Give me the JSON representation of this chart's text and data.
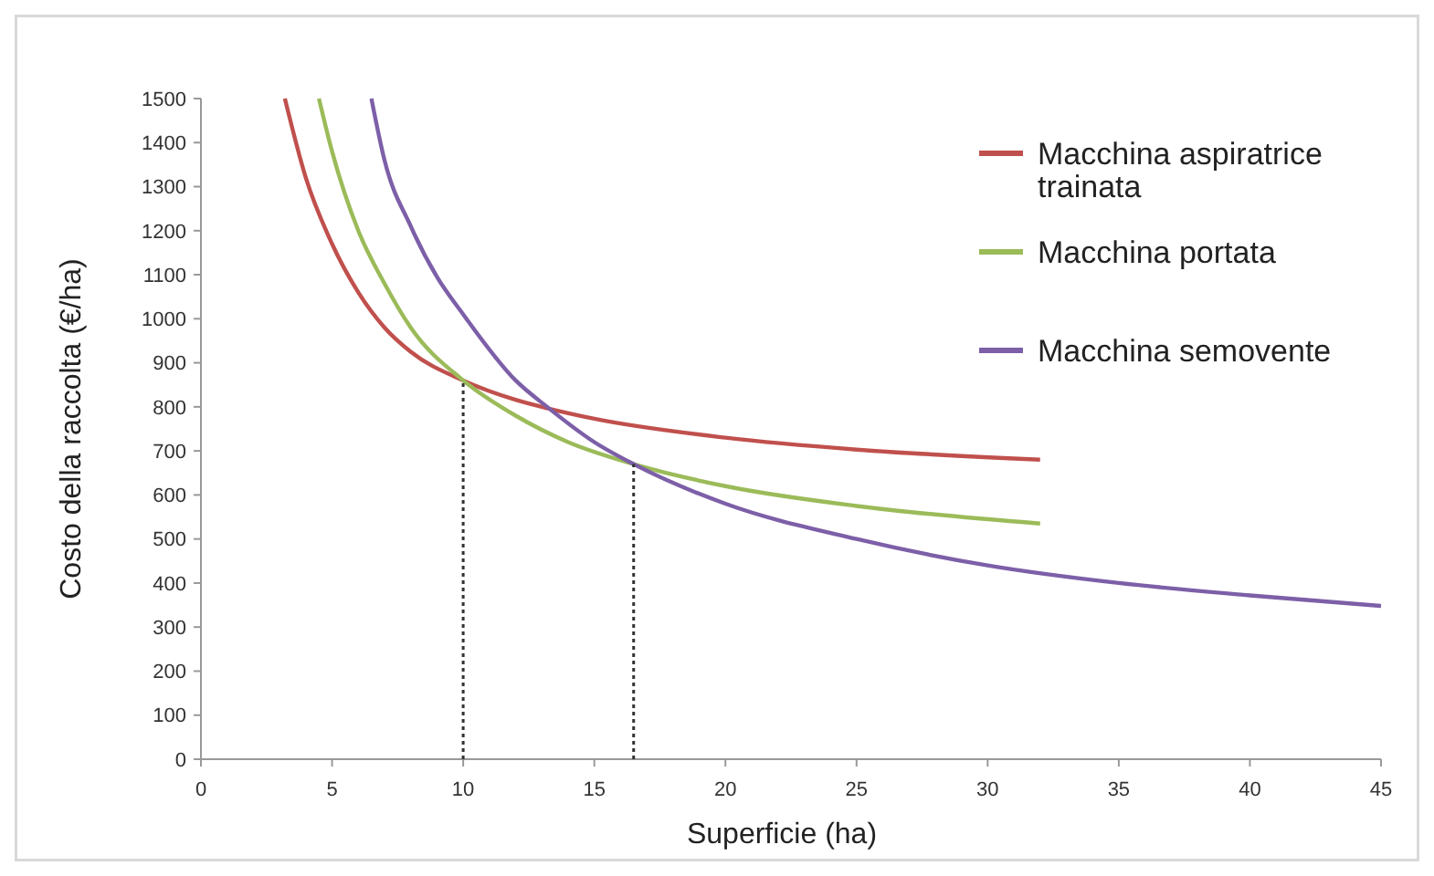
{
  "chart_data": {
    "type": "line",
    "xlabel": "Superficie (ha)",
    "ylabel": "Costo della raccolta (€/ha)",
    "xlim": [
      0,
      45
    ],
    "xticks": [
      0,
      5,
      10,
      15,
      20,
      25,
      30,
      35,
      40,
      45
    ],
    "ylim": [
      0,
      1500
    ],
    "yticks": [
      0,
      100,
      200,
      300,
      400,
      500,
      600,
      700,
      800,
      900,
      1000,
      1100,
      1200,
      1300,
      1400,
      1500
    ],
    "grid": false,
    "legend": "top right",
    "marker": "none",
    "line_style": "solid",
    "series": [
      {
        "name": "Macchina aspiratrice trainata",
        "color": "#c0504d",
        "x": [
          3.2,
          4,
          5,
          6,
          7,
          8,
          10,
          12,
          13.2,
          15,
          20,
          25,
          32
        ],
        "values": [
          1500,
          1320,
          1170,
          1060,
          980,
          925,
          860,
          816,
          797,
          773,
          730,
          703,
          680
        ]
      },
      {
        "name": "Macchina portata",
        "color": "#9bbb59",
        "x": [
          4.5,
          5,
          6,
          7,
          8,
          10,
          12,
          14,
          16.5,
          20,
          25,
          32
        ],
        "values": [
          1500,
          1380,
          1200,
          1080,
          980,
          860,
          780,
          720,
          670,
          620,
          575,
          535
        ]
      },
      {
        "name": "Macchina semovente",
        "color": "#7d5fa8",
        "x": [
          6.5,
          7,
          8,
          9,
          10,
          12,
          13.2,
          15,
          16.5,
          20,
          25,
          30,
          35,
          40,
          45
        ],
        "values": [
          1500,
          1360,
          1210,
          1095,
          1010,
          860,
          800,
          720,
          670,
          580,
          500,
          440,
          400,
          372,
          348
        ]
      },
      {
        "color": "#333333",
        "line_style": "dotted",
        "x": [
          10,
          10
        ],
        "values": [
          0,
          860
        ]
      },
      {
        "color": "#333333",
        "line_style": "dotted",
        "x": [
          16.5,
          16.5
        ],
        "values": [
          0,
          670
        ]
      }
    ]
  }
}
